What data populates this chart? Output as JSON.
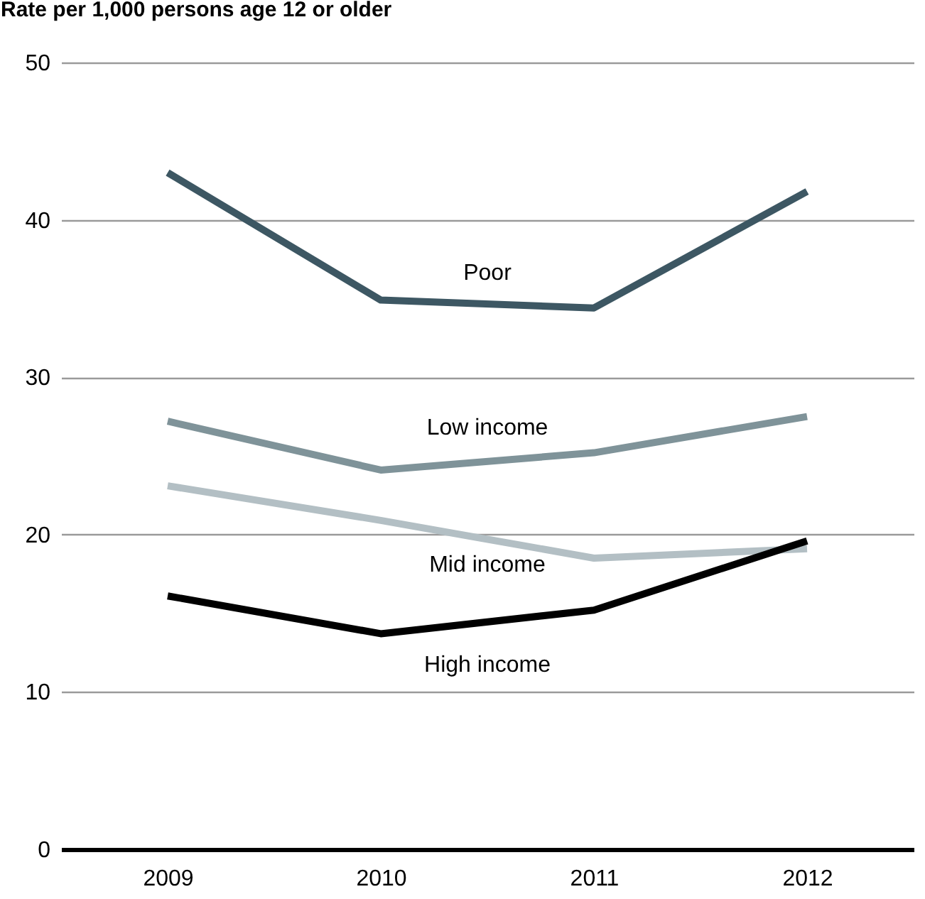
{
  "chart_data": {
    "type": "line",
    "ylabel": "Rate per 1,000 persons age 12 or older",
    "categories": [
      "2009",
      "2010",
      "2011",
      "2012"
    ],
    "series": [
      {
        "name": "Poor",
        "color": "#3d5763",
        "values": [
          43.0,
          34.9,
          34.4,
          41.8
        ]
      },
      {
        "name": "Low income",
        "color": "#7f9399",
        "values": [
          27.2,
          24.1,
          25.2,
          27.5
        ]
      },
      {
        "name": "Mid income",
        "color": "#b3bfc4",
        "values": [
          23.1,
          20.9,
          18.5,
          19.1
        ]
      },
      {
        "name": "High income",
        "color": "#000000",
        "values": [
          16.1,
          13.7,
          15.2,
          19.6
        ]
      }
    ],
    "ylim": [
      0,
      50
    ],
    "yticks": [
      0,
      10,
      20,
      30,
      40,
      50
    ],
    "grid": "y",
    "legend": false,
    "marker": "none",
    "line_style": "solid"
  }
}
